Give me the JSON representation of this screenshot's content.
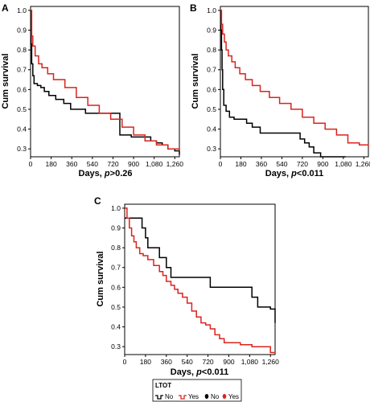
{
  "chart_data": [
    {
      "panel_label": "A",
      "type": "line",
      "step": true,
      "ylabel": "Cum survival",
      "xlabel": "Days, ",
      "xlabel_italic": "p",
      "xlabel_suffix": ">0.26",
      "xlim": [
        0,
        1300
      ],
      "ylim": [
        0.26,
        1.02
      ],
      "xticks": [
        0,
        180,
        360,
        540,
        720,
        900,
        1080,
        1260
      ],
      "xtick_labels": [
        "0",
        "180",
        "360",
        "540",
        "720",
        "900",
        "1,080",
        "1,260"
      ],
      "yticks": [
        0.3,
        0.4,
        0.5,
        0.6,
        0.7,
        0.8,
        0.9,
        1.0
      ],
      "ytick_labels": [
        "0.3",
        "0.4",
        "0.5",
        "0.6",
        "0.7",
        "0.8",
        "0.9",
        "1.0"
      ],
      "series": [
        {
          "color": "#000000",
          "x": [
            0,
            5,
            10,
            20,
            30,
            60,
            90,
            120,
            160,
            220,
            290,
            350,
            420,
            480,
            560,
            640,
            720,
            780,
            840,
            880,
            950,
            1000,
            1050,
            1100,
            1150,
            1200,
            1260,
            1300
          ],
          "y": [
            1.0,
            0.83,
            0.73,
            0.67,
            0.63,
            0.62,
            0.61,
            0.59,
            0.57,
            0.55,
            0.53,
            0.5,
            0.5,
            0.48,
            0.48,
            0.48,
            0.48,
            0.37,
            0.37,
            0.36,
            0.36,
            0.36,
            0.34,
            0.33,
            0.32,
            0.3,
            0.29,
            0.27
          ]
        },
        {
          "color": "#d9241e",
          "x": [
            0,
            10,
            20,
            40,
            70,
            100,
            150,
            200,
            300,
            400,
            500,
            600,
            700,
            800,
            900,
            1000,
            1100,
            1200,
            1300
          ],
          "y": [
            1.0,
            0.87,
            0.82,
            0.77,
            0.73,
            0.71,
            0.68,
            0.65,
            0.61,
            0.56,
            0.52,
            0.48,
            0.45,
            0.41,
            0.37,
            0.34,
            0.32,
            0.3,
            0.29
          ]
        }
      ]
    },
    {
      "panel_label": "B",
      "type": "line",
      "step": true,
      "ylabel": "Cum survival",
      "xlabel": "Days, ",
      "xlabel_italic": "p",
      "xlabel_suffix": "<0.011",
      "xlim": [
        0,
        1300
      ],
      "ylim": [
        0.26,
        1.02
      ],
      "xticks": [
        0,
        180,
        360,
        540,
        720,
        900,
        1080,
        1260
      ],
      "xtick_labels": [
        "0",
        "180",
        "360",
        "540",
        "720",
        "900",
        "1,080",
        "1,260"
      ],
      "yticks": [
        0.3,
        0.4,
        0.5,
        0.6,
        0.7,
        0.8,
        0.9,
        1.0
      ],
      "ytick_labels": [
        "0.3",
        "0.4",
        "0.5",
        "0.6",
        "0.7",
        "0.8",
        "0.9",
        "1.0"
      ],
      "series": [
        {
          "color": "#000000",
          "x": [
            0,
            5,
            10,
            15,
            20,
            30,
            50,
            80,
            120,
            170,
            230,
            280,
            350,
            420,
            500,
            600,
            700,
            740,
            780,
            820,
            880,
            1000,
            1100
          ],
          "y": [
            1.0,
            0.9,
            0.8,
            0.7,
            0.6,
            0.52,
            0.49,
            0.46,
            0.45,
            0.45,
            0.43,
            0.41,
            0.38,
            0.38,
            0.38,
            0.38,
            0.35,
            0.33,
            0.31,
            0.28,
            0.26,
            0.26,
            0.26
          ]
        },
        {
          "color": "#d9241e",
          "x": [
            0,
            10,
            20,
            35,
            50,
            70,
            100,
            130,
            170,
            220,
            280,
            350,
            430,
            520,
            620,
            720,
            820,
            920,
            1020,
            1120,
            1220,
            1300
          ],
          "y": [
            1.0,
            0.93,
            0.88,
            0.84,
            0.8,
            0.77,
            0.74,
            0.71,
            0.68,
            0.65,
            0.62,
            0.59,
            0.56,
            0.53,
            0.5,
            0.46,
            0.43,
            0.4,
            0.37,
            0.33,
            0.32,
            0.31
          ]
        }
      ]
    },
    {
      "panel_label": "C",
      "type": "line",
      "step": true,
      "ylabel": "Cum survival",
      "xlabel": "Days, ",
      "xlabel_italic": "p",
      "xlabel_suffix": "<0.011",
      "xlim": [
        0,
        1300
      ],
      "ylim": [
        0.26,
        1.02
      ],
      "xticks": [
        0,
        180,
        360,
        540,
        720,
        900,
        1080,
        1260
      ],
      "xtick_labels": [
        "0",
        "180",
        "360",
        "540",
        "720",
        "900",
        "1,080",
        "1,260"
      ],
      "yticks": [
        0.3,
        0.4,
        0.5,
        0.6,
        0.7,
        0.8,
        0.9,
        1.0
      ],
      "ytick_labels": [
        "0.3",
        "0.4",
        "0.5",
        "0.6",
        "0.7",
        "0.8",
        "0.9",
        "1.0"
      ],
      "series": [
        {
          "color": "#000000",
          "x": [
            0,
            130,
            150,
            180,
            200,
            250,
            300,
            360,
            400,
            450,
            550,
            700,
            740,
            800,
            900,
            1000,
            1100,
            1150,
            1200,
            1260,
            1300
          ],
          "y": [
            0.95,
            0.95,
            0.9,
            0.85,
            0.8,
            0.8,
            0.75,
            0.7,
            0.65,
            0.65,
            0.65,
            0.65,
            0.6,
            0.6,
            0.6,
            0.6,
            0.55,
            0.5,
            0.5,
            0.49,
            0.42
          ]
        },
        {
          "color": "#d9241e",
          "x": [
            0,
            20,
            40,
            60,
            80,
            100,
            130,
            160,
            200,
            250,
            300,
            330,
            360,
            400,
            430,
            460,
            500,
            540,
            580,
            620,
            660,
            700,
            740,
            780,
            820,
            860,
            900,
            950,
            1000,
            1050,
            1100,
            1150,
            1200,
            1260,
            1300
          ],
          "y": [
            1.0,
            0.95,
            0.9,
            0.86,
            0.83,
            0.8,
            0.77,
            0.76,
            0.74,
            0.71,
            0.68,
            0.66,
            0.63,
            0.61,
            0.59,
            0.57,
            0.55,
            0.52,
            0.48,
            0.45,
            0.42,
            0.41,
            0.39,
            0.36,
            0.34,
            0.32,
            0.32,
            0.32,
            0.31,
            0.31,
            0.3,
            0.3,
            0.3,
            0.27,
            0.27
          ]
        }
      ]
    }
  ],
  "legend": {
    "title": "LTOT",
    "placement": "bottom",
    "items": [
      {
        "label": "No",
        "color": "#000000",
        "marker": "step-line"
      },
      {
        "label": "Yes",
        "color": "#d9241e",
        "marker": "step-line"
      },
      {
        "label": "No",
        "color": "#000000",
        "marker": "censored-dot"
      },
      {
        "label": "Yes",
        "color": "#d9241e",
        "marker": "censored-dot"
      }
    ]
  }
}
